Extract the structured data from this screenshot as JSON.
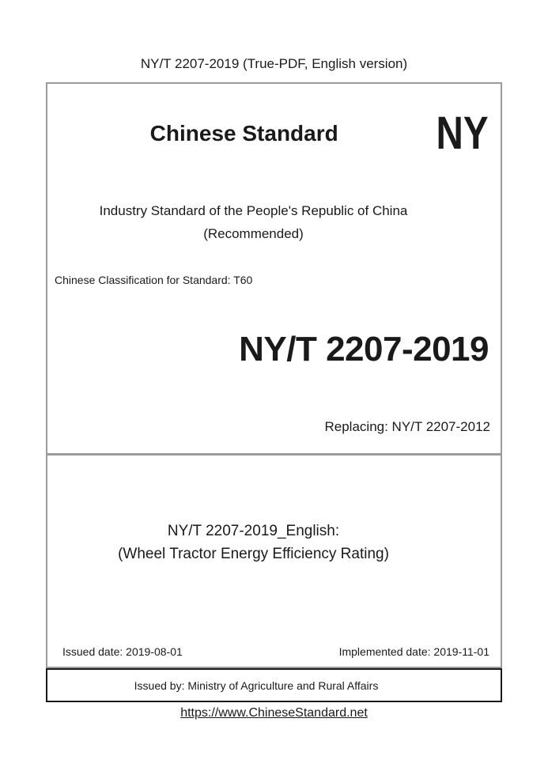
{
  "document": {
    "header": "NY/T 2207-2019 (True-PDF, English version)",
    "brand": {
      "title": "Chinese Standard",
      "code": "NY"
    },
    "standard_type": {
      "line1": "Industry Standard of the People's Republic of China",
      "line2": "(Recommended)"
    },
    "classification": "Chinese Classification for Standard: T60",
    "standard_number": "NY/T 2207-2019",
    "replacing": "Replacing: NY/T 2207-2012",
    "english_title": {
      "line1": "NY/T 2207-2019_English:",
      "line2": "(Wheel Tractor Energy Efficiency Rating)"
    },
    "dates": {
      "issued": "Issued date: 2019-08-01",
      "implemented": "Implemented date: 2019-11-01"
    },
    "issuer": "Issued by: Ministry of Agriculture and Rural Affairs",
    "website": "https://www.ChineseStandard.net"
  },
  "colors": {
    "text": "#1a1a1a",
    "border_gray": "#9b9b9b",
    "border_black": "#1b1b1b",
    "background": "#ffffff"
  }
}
